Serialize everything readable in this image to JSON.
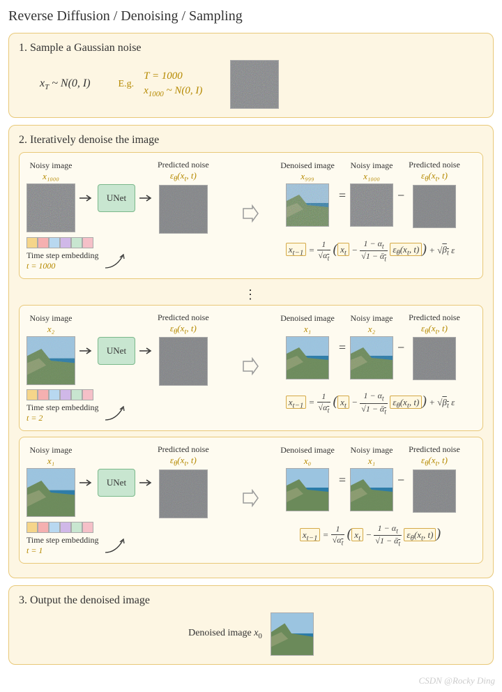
{
  "title": "Reverse Diffusion / Denoising / Sampling",
  "section1": {
    "heading": "1. Sample a Gaussian noise",
    "formula": "xₜ ~ N(0, I)",
    "formula_html": "x<sub>T</sub> ~ <i>N</i>(0, I)",
    "eg_label": "E.g.",
    "eg_line1": "T = 1000",
    "eg_line2": "x₁₀₀₀ ~ N(0, I)",
    "noise_color": "#808285"
  },
  "section2": {
    "heading": "2. Iteratively denoise the image",
    "unet_label": "UNet",
    "unet_bg": "#c8e6d0",
    "unet_border": "#7ab88a",
    "embedding_colors": [
      "#f5d58a",
      "#f5b0b0",
      "#b8d8f0",
      "#d0b8e8",
      "#c8e6d0",
      "#f5c0c8"
    ],
    "time_embedding_label": "Time step embedding",
    "noisy_label": "Noisy image",
    "predicted_label": "Predicted noise",
    "denoised_label": "Denoised image",
    "epsilon_label": "εθ(xₜ, t)",
    "formula_text": "x_{t-1} = (1/√αₜ)(xₜ − ((1−αₜ)/√(1−ᾱₜ)) εθ(xₜ,t)) + √βₜ ε",
    "steps": [
      {
        "input_var": "x₁₀₀₀",
        "output_var": "x₉₉₉",
        "t_label": "t = 1000",
        "noise_level": 1.0,
        "has_beta_term": true
      },
      {
        "input_var": "x₂",
        "output_var": "x₁",
        "t_label": "t = 2",
        "noise_level": 0.3,
        "has_beta_term": true
      },
      {
        "input_var": "x₁",
        "output_var": "x₀",
        "t_label": "t = 1",
        "noise_level": 0.1,
        "has_beta_term": false
      }
    ]
  },
  "section3": {
    "heading": "3. Output the denoised image",
    "label": "Denoised image x₀"
  },
  "colors": {
    "section_bg": "#fdf6e3",
    "section_border": "#e8c878",
    "inner_bg": "#fefbf0",
    "accent_text": "#b58900",
    "highlight_border": "#d4a947",
    "highlight_bg": "#fff8e1",
    "noise_gray": "#808285",
    "light_noise": "#b8b8ba",
    "sky": "#7ba8c9",
    "sea": "#2a7ba8",
    "land": "#8a9b6f"
  },
  "watermark": "CSDN @Rocky Ding"
}
